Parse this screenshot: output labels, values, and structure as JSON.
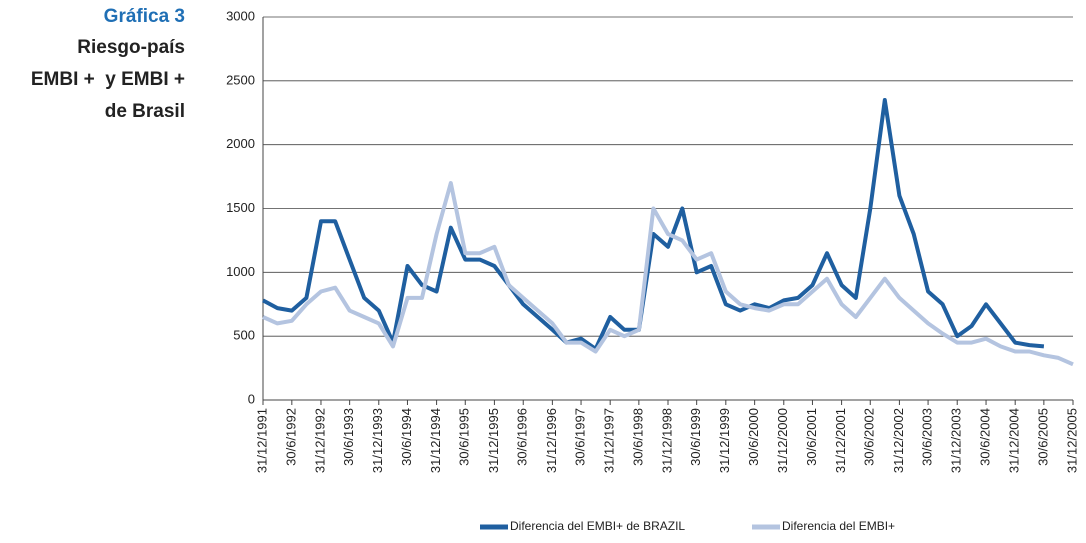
{
  "chart_data": {
    "type": "line",
    "title": [
      "Gráfica 3",
      "Riesgo-país",
      "EMBI +  y EMBI +",
      "de Brasil"
    ],
    "x": [
      "31/12/1991",
      "31/3/1992",
      "30/6/1992",
      "30/9/1992",
      "31/12/1992",
      "31/3/1993",
      "30/6/1993",
      "30/9/1993",
      "31/12/1993",
      "31/3/1994",
      "30/6/1994",
      "30/9/1994",
      "31/12/1994",
      "31/3/1995",
      "30/6/1995",
      "30/9/1995",
      "31/12/1995",
      "31/3/1996",
      "30/6/1996",
      "30/9/1996",
      "31/12/1996",
      "31/3/1997",
      "30/6/1997",
      "30/9/1997",
      "31/12/1997",
      "31/3/1998",
      "30/6/1998",
      "30/9/1998",
      "31/12/1998",
      "31/3/1999",
      "30/6/1999",
      "30/9/1999",
      "31/12/1999",
      "31/3/2000",
      "30/6/2000",
      "30/9/2000",
      "31/12/2000",
      "31/3/2001",
      "30/6/2001",
      "30/9/2001",
      "31/12/2001",
      "31/3/2002",
      "30/6/2002",
      "30/9/2002",
      "31/12/2002",
      "31/3/2003",
      "30/6/2003",
      "30/9/2003",
      "31/12/2003",
      "31/3/2004",
      "30/6/2004",
      "30/9/2004",
      "31/12/2004",
      "31/3/2005",
      "30/6/2005",
      "30/9/2005",
      "31/12/2005"
    ],
    "series": [
      {
        "name": "Diferencia del EMBI+ de BRAZIL",
        "color": "#1f5fa0",
        "values": [
          780,
          720,
          700,
          800,
          1400,
          1400,
          1100,
          800,
          700,
          450,
          1050,
          900,
          850,
          1350,
          1100,
          1100,
          1050,
          900,
          750,
          650,
          550,
          450,
          480,
          400,
          650,
          550,
          550,
          1300,
          1200,
          1500,
          1000,
          1050,
          750,
          700,
          750,
          720,
          780,
          800,
          900,
          1150,
          900,
          800,
          1500,
          2350,
          1600,
          1300,
          850,
          750,
          500,
          580,
          750,
          600,
          450,
          430,
          420,
          null,
          null
        ]
      },
      {
        "name": "Diferencia del EMBI+",
        "color": "#b4c4e0",
        "values": [
          650,
          600,
          620,
          750,
          850,
          880,
          700,
          650,
          600,
          420,
          800,
          800,
          1300,
          1700,
          1150,
          1150,
          1200,
          900,
          800,
          700,
          600,
          450,
          450,
          380,
          550,
          500,
          550,
          1500,
          1300,
          1250,
          1100,
          1150,
          850,
          750,
          720,
          700,
          750,
          750,
          850,
          950,
          750,
          650,
          800,
          950,
          800,
          700,
          600,
          520,
          450,
          450,
          480,
          420,
          380,
          380,
          350,
          330,
          280
        ]
      }
    ],
    "xlim": [
      "31/12/1991",
      "31/12/2005"
    ],
    "xticks": [
      "31/12/1991",
      "30/6/1992",
      "31/12/1992",
      "30/6/1993",
      "31/12/1993",
      "30/6/1994",
      "31/12/1994",
      "30/6/1995",
      "31/12/1995",
      "30/6/1996",
      "31/12/1996",
      "30/6/1997",
      "31/12/1997",
      "30/6/1998",
      "31/12/1998",
      "30/6/1999",
      "31/12/1999",
      "30/6/2000",
      "31/12/2000",
      "30/6/2001",
      "31/12/2001",
      "30/6/2002",
      "31/12/2002",
      "30/6/2003",
      "31/12/2003",
      "30/6/2004",
      "31/12/2004",
      "30/6/2005",
      "31/12/2005"
    ],
    "ylim": [
      0,
      3000
    ],
    "yticks": [
      0,
      500,
      1000,
      1500,
      2000,
      2500,
      3000
    ],
    "grid": true
  }
}
